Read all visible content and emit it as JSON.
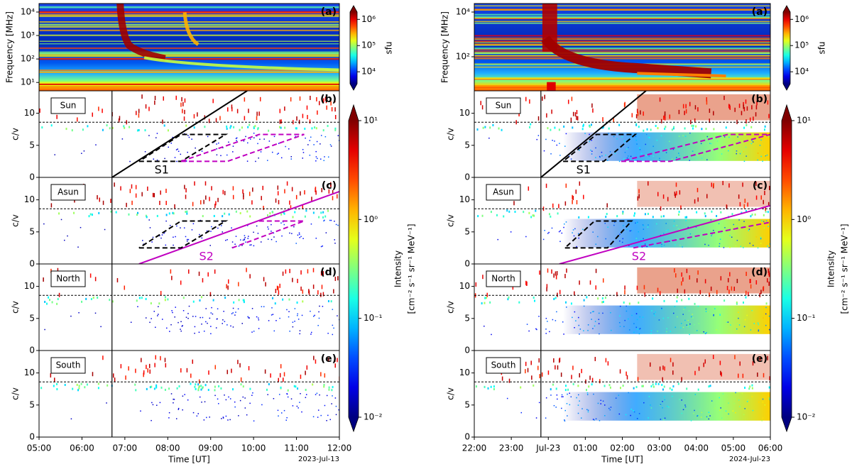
{
  "chart_data": [
    {
      "type": "heatmap",
      "xlabel": "Time [UT]",
      "date": "2023-Jul-13",
      "xlim": [
        5,
        12
      ],
      "xticks": [
        {
          "value": 5,
          "label": "05:00"
        },
        {
          "value": 6,
          "label": "06:00"
        },
        {
          "value": 7,
          "label": "07:00"
        },
        {
          "value": 8,
          "label": "08:00"
        },
        {
          "value": 9,
          "label": "09:00"
        },
        {
          "value": 10,
          "label": "10:00"
        },
        {
          "value": 11,
          "label": "11:00"
        },
        {
          "value": 12,
          "label": "12:00"
        }
      ],
      "vline": 6.7,
      "spectrogram": {
        "letter": "(a)",
        "ylabel": "Frequency [MHz]",
        "log": true,
        "ylim": [
          4.4,
          23000
        ],
        "yticks": [
          {
            "value": 10,
            "label": "10¹"
          },
          {
            "value": 100,
            "label": "10²"
          },
          {
            "value": 1000,
            "label": "10³"
          },
          {
            "value": 10000,
            "label": "10⁴"
          }
        ],
        "colorbar": {
          "label": "sfu",
          "lim": [
            3500,
            1900000
          ],
          "ticks": [
            {
              "value": 10000,
              "label": "10⁴"
            },
            {
              "value": 100000,
              "label": "10⁵"
            },
            {
              "value": 1000000,
              "label": "10⁶"
            }
          ]
        }
      },
      "cv": {
        "ylabel": "c/v",
        "ylim": [
          0,
          13.5
        ],
        "yticks": [
          0,
          5,
          10
        ],
        "hline": 8.6
      },
      "panels": [
        {
          "name": "Sun",
          "letter": "(b)"
        },
        {
          "name": "Asun",
          "letter": "(c)"
        },
        {
          "name": "North",
          "letter": "(d)"
        },
        {
          "name": "South",
          "letter": "(e)"
        }
      ],
      "colorbar": {
        "label": "Intensity",
        "units": "[cm⁻² s⁻¹ sr⁻¹ MeV⁻¹]",
        "log": true,
        "lim": [
          0.01,
          10
        ],
        "ticks": [
          {
            "value": 0.01,
            "label": "10⁻²"
          },
          {
            "value": 0.1,
            "label": "10⁻¹"
          },
          {
            "value": 1,
            "label": "10⁰"
          },
          {
            "value": 10,
            "label": "10¹"
          }
        ]
      },
      "overlays": [
        {
          "panel": 0,
          "color": "#000000",
          "dash": false,
          "x": [
            6.7,
            9.85
          ],
          "y": [
            0,
            13.5
          ]
        },
        {
          "panel": 0,
          "color": "#000000",
          "dash": true,
          "x": [
            7.33,
            8.31,
            9.35,
            8.31,
            7.33
          ],
          "y": [
            2.5,
            2.5,
            6.7,
            6.7,
            2.5
          ]
        },
        {
          "panel": 0,
          "color": "#c000c0",
          "dash": true,
          "x": [
            8.31,
            9.39,
            11.18,
            10.13,
            8.31
          ],
          "y": [
            2.5,
            2.5,
            6.7,
            6.7,
            2.5
          ]
        },
        {
          "panel": 1,
          "color": "#c000c0",
          "dash": false,
          "x": [
            7.33,
            12
          ],
          "y": [
            0,
            11.3
          ]
        },
        {
          "panel": 1,
          "color": "#000000",
          "dash": true,
          "x": [
            7.33,
            8.31,
            9.35,
            8.31,
            7.33
          ],
          "y": [
            2.5,
            2.5,
            6.7,
            6.7,
            2.5
          ]
        },
        {
          "panel": 1,
          "color": "#c000c0",
          "dash": true,
          "x": [
            9.5,
            11.18,
            10.13
          ],
          "y": [
            2.5,
            6.7,
            6.7
          ]
        }
      ],
      "annotations": [
        {
          "panel": 0,
          "text": "S1",
          "x": 7.86,
          "y": 1.1,
          "color": "#000000"
        },
        {
          "panel": 1,
          "text": "S2",
          "x": 8.9,
          "y": 1.1,
          "color": "#c000c0"
        }
      ]
    },
    {
      "type": "heatmap",
      "xlabel": "Time [UT]",
      "date": "2024-Jul-23",
      "xlim": [
        22,
        30
      ],
      "xticks": [
        {
          "value": 22,
          "label": "22:00"
        },
        {
          "value": 23,
          "label": "23:00"
        },
        {
          "value": 24,
          "label": "Jul-23"
        },
        {
          "value": 25,
          "label": "01:00"
        },
        {
          "value": 26,
          "label": "02:00"
        },
        {
          "value": 27,
          "label": "03:00"
        },
        {
          "value": 28,
          "label": "04:00"
        },
        {
          "value": 29,
          "label": "05:00"
        },
        {
          "value": 30,
          "label": "06:00"
        }
      ],
      "vline": 23.8,
      "spectrogram": {
        "letter": "(a)",
        "ylabel": "Frequency [MHz]",
        "log": true,
        "ylim": [
          3,
          24000
        ],
        "yticks": [
          {
            "value": 100,
            "label": "10²"
          },
          {
            "value": 10000,
            "label": "10⁴"
          }
        ],
        "colorbar": {
          "label": "sfu",
          "lim": [
            3500,
            1900000
          ],
          "ticks": [
            {
              "value": 10000,
              "label": "10⁴"
            },
            {
              "value": 100000,
              "label": "10⁵"
            },
            {
              "value": 1000000,
              "label": "10⁶"
            }
          ]
        }
      },
      "cv": {
        "ylabel": "c/v",
        "ylim": [
          0,
          13.5
        ],
        "yticks": [
          0,
          5,
          10
        ],
        "hline": 8.6
      },
      "panels": [
        {
          "name": "Sun",
          "letter": "(b)"
        },
        {
          "name": "Asun",
          "letter": "(c)"
        },
        {
          "name": "North",
          "letter": "(d)"
        },
        {
          "name": "South",
          "letter": "(e)"
        }
      ],
      "colorbar": {
        "label": "Intensity",
        "units": "[cm⁻² s⁻¹ sr⁻¹ MeV⁻¹]",
        "log": true,
        "lim": [
          0.01,
          10
        ],
        "ticks": [
          {
            "value": 0.01,
            "label": "10⁻²"
          },
          {
            "value": 0.1,
            "label": "10⁻¹"
          },
          {
            "value": 1,
            "label": "10⁰"
          },
          {
            "value": 10,
            "label": "10¹"
          }
        ]
      },
      "overlays": [
        {
          "panel": 0,
          "color": "#000000",
          "dash": false,
          "x": [
            23.8,
            26.64
          ],
          "y": [
            0,
            13.5
          ]
        },
        {
          "panel": 0,
          "color": "#000000",
          "dash": true,
          "x": [
            24.4,
            25.5,
            26.35,
            25.3,
            24.4
          ],
          "y": [
            2.5,
            2.5,
            6.7,
            6.7,
            2.5
          ]
        },
        {
          "panel": 0,
          "color": "#c000c0",
          "dash": true,
          "x": [
            25.97,
            27.3,
            30,
            28.85,
            25.97
          ],
          "y": [
            2.5,
            2.5,
            6.7,
            6.7,
            2.5
          ]
        },
        {
          "panel": 1,
          "color": "#c000c0",
          "dash": false,
          "x": [
            24.3,
            30
          ],
          "y": [
            0,
            9.1
          ]
        },
        {
          "panel": 1,
          "color": "#000000",
          "dash": true,
          "x": [
            24.45,
            25.6,
            26.25,
            25.25,
            24.45
          ],
          "y": [
            2.5,
            2.5,
            6.7,
            6.7,
            2.5
          ]
        },
        {
          "panel": 1,
          "color": "#c000c0",
          "dash": true,
          "x": [
            26.3,
            30
          ],
          "y": [
            2.5,
            6.5
          ]
        }
      ],
      "annotations": [
        {
          "panel": 0,
          "text": "S1",
          "x": 24.95,
          "y": 1.1,
          "color": "#000000"
        },
        {
          "panel": 1,
          "text": "S2",
          "x": 26.45,
          "y": 1.1,
          "color": "#c000c0"
        }
      ]
    }
  ]
}
